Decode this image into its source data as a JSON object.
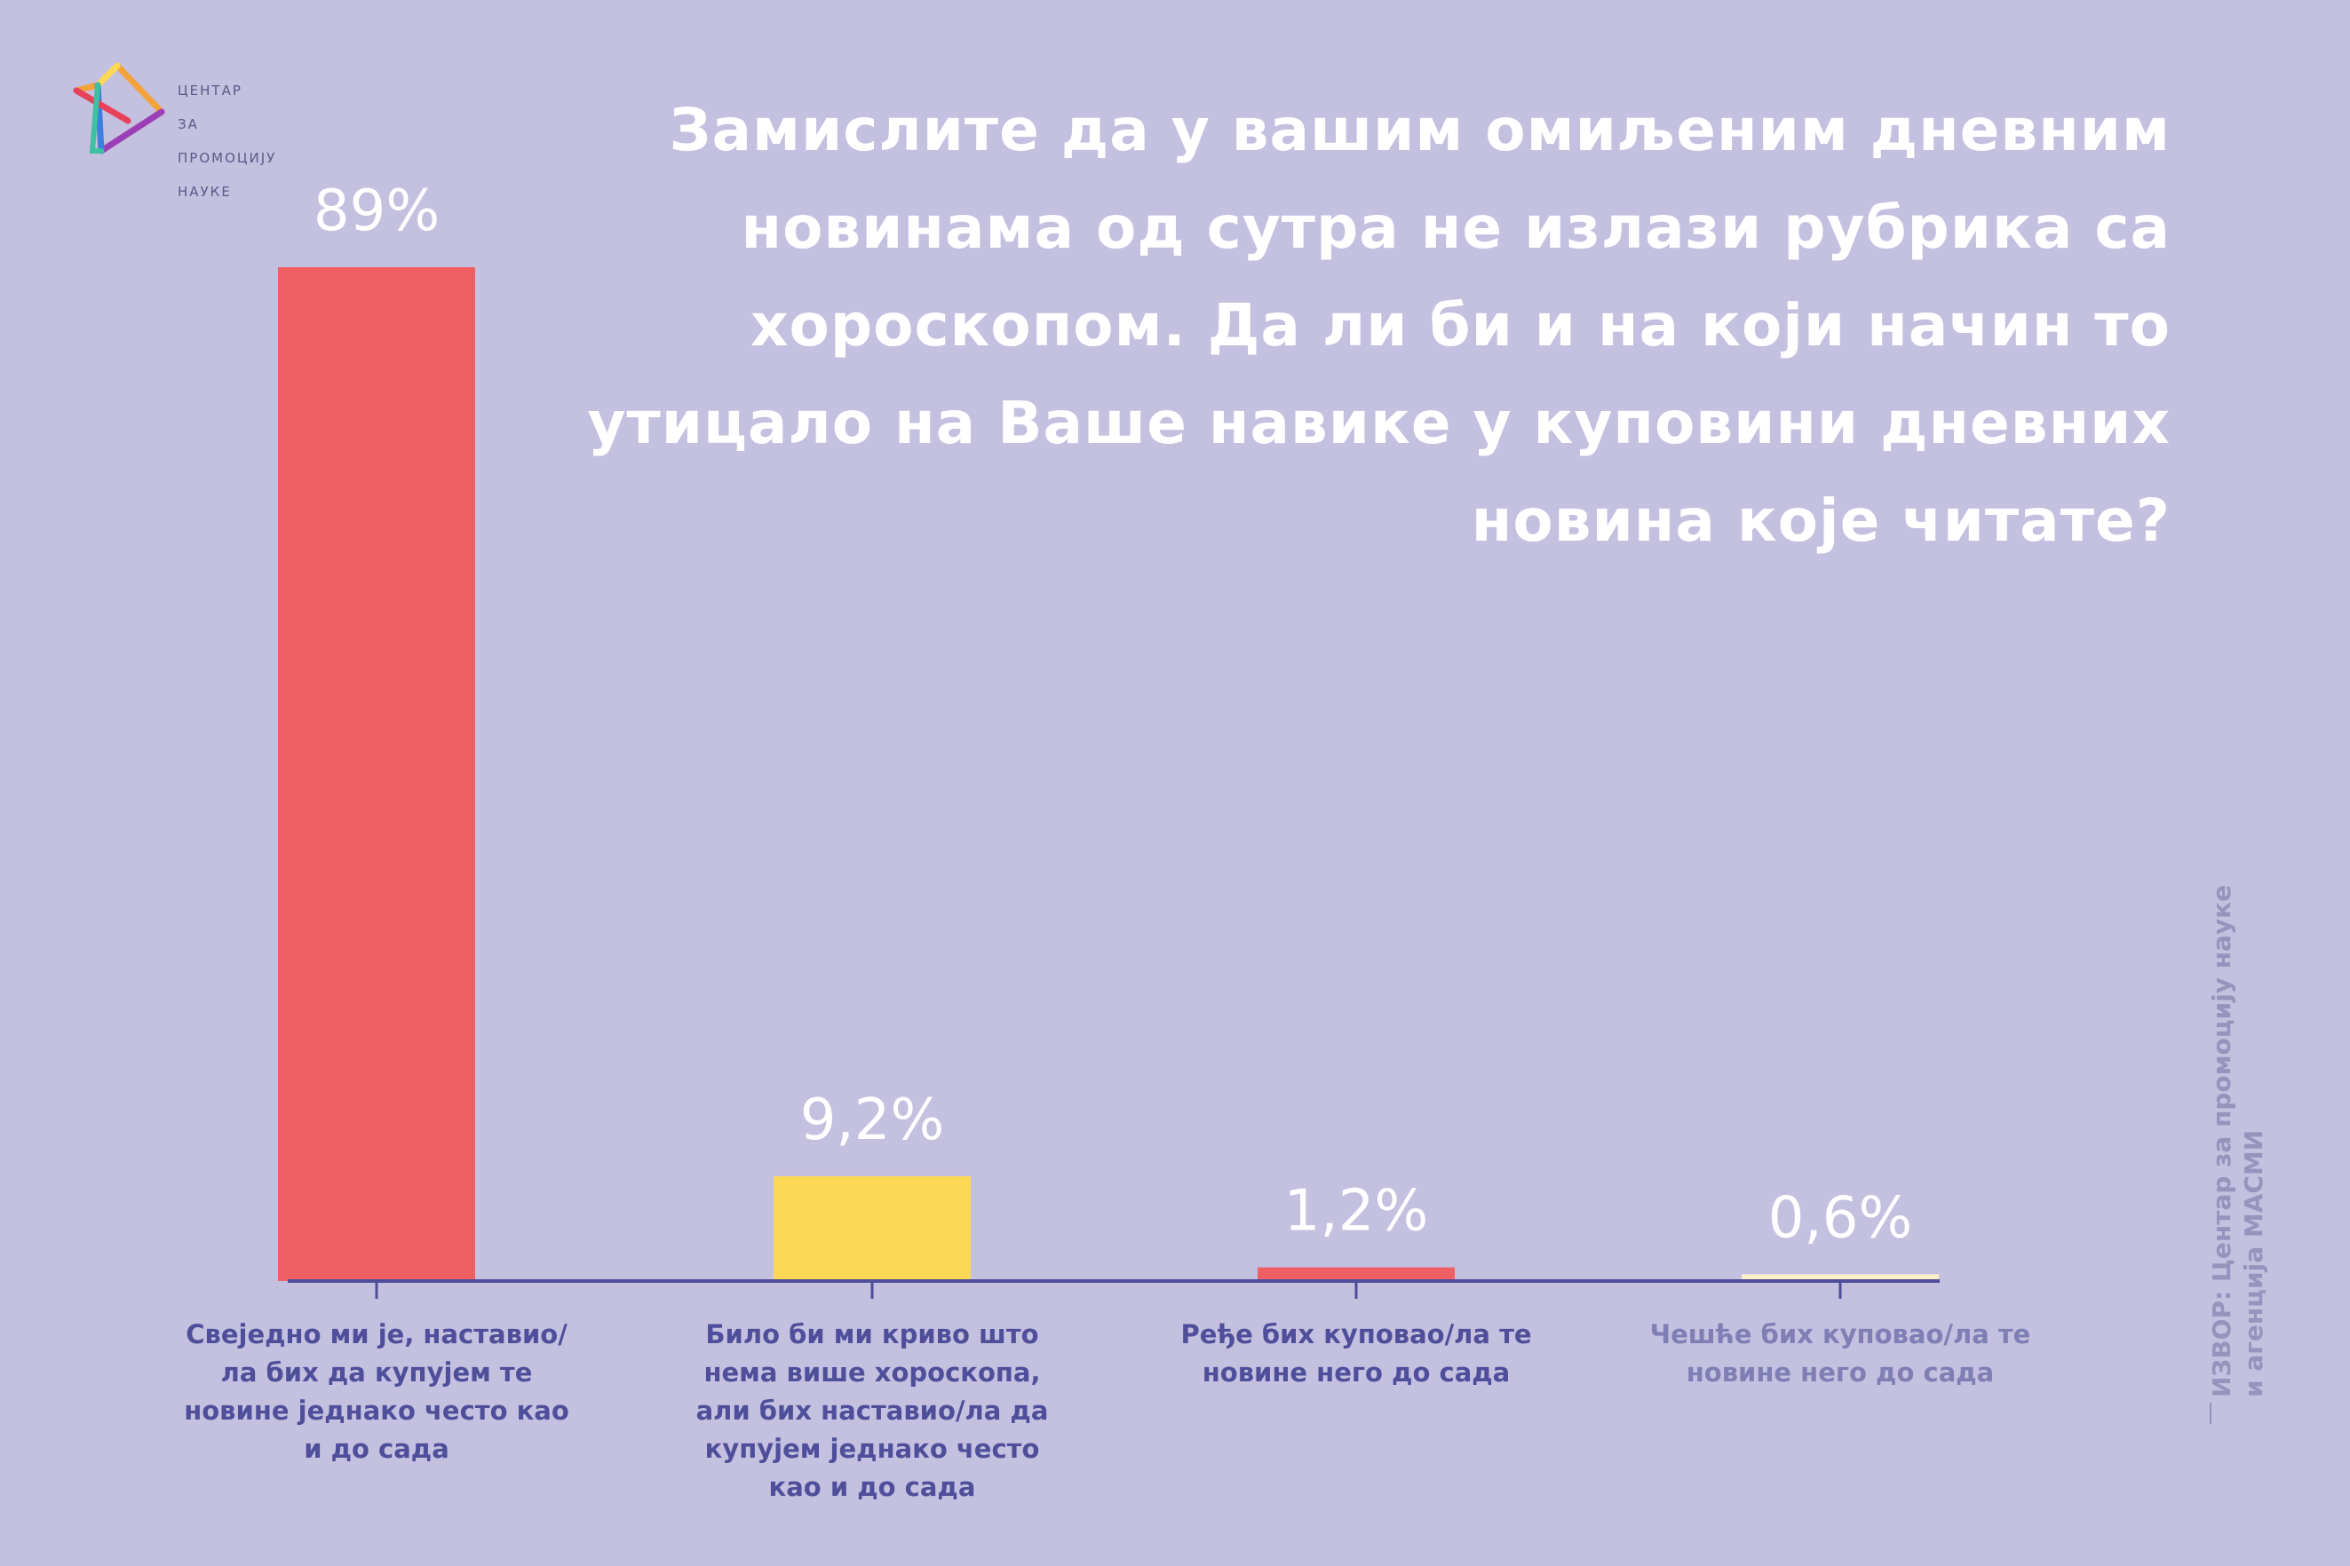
{
  "logo": {
    "lines": [
      "ЦЕНТАР",
      "ЗА",
      "ПРОМОЦИЈУ",
      "НАУКЕ"
    ]
  },
  "source": {
    "line1": "ИЗВОР: Центар за промоцију науке",
    "line2": "и агенција МАСМИ"
  },
  "colors": {
    "background": "#c3c0e0",
    "axis": "#4f4e9a",
    "label_dark": "#4f4e9a",
    "label_light": "#7f7eb5"
  },
  "chart_data": {
    "type": "bar",
    "title": "Замислите да у вашим омиљеним дневним новинама од сутра не излази рубрика са хороскопом. Да ли би и на који начин то утицало на Ваше навике у куповини дневних новина које читате?",
    "categories": [
      "Свеједно ми је, наставио/ла бих да купујем те новине једнако често као и до сада",
      "Било би ми криво што нема више хороскопа, али бих наставио/ла да купујем једнако често као и до сада",
      "Ређе бих куповао/ла те новине него до сада",
      "Чешће бих куповао/ла те новине него до сада"
    ],
    "values": [
      89,
      9.2,
      1.2,
      0.6
    ],
    "value_labels": [
      "89%",
      "9,2%",
      "1,2%",
      "0,6%"
    ],
    "bar_colors": [
      "#f05f63",
      "#fdd855",
      "#f05f63",
      "#fbefc6"
    ],
    "label_colors": [
      "#4f4e9a",
      "#4f4e9a",
      "#4f4e9a",
      "#7f7eb5"
    ],
    "ylim": [
      0,
      89
    ],
    "xlabel": "",
    "ylabel": "",
    "grid": false,
    "legend": "none"
  }
}
